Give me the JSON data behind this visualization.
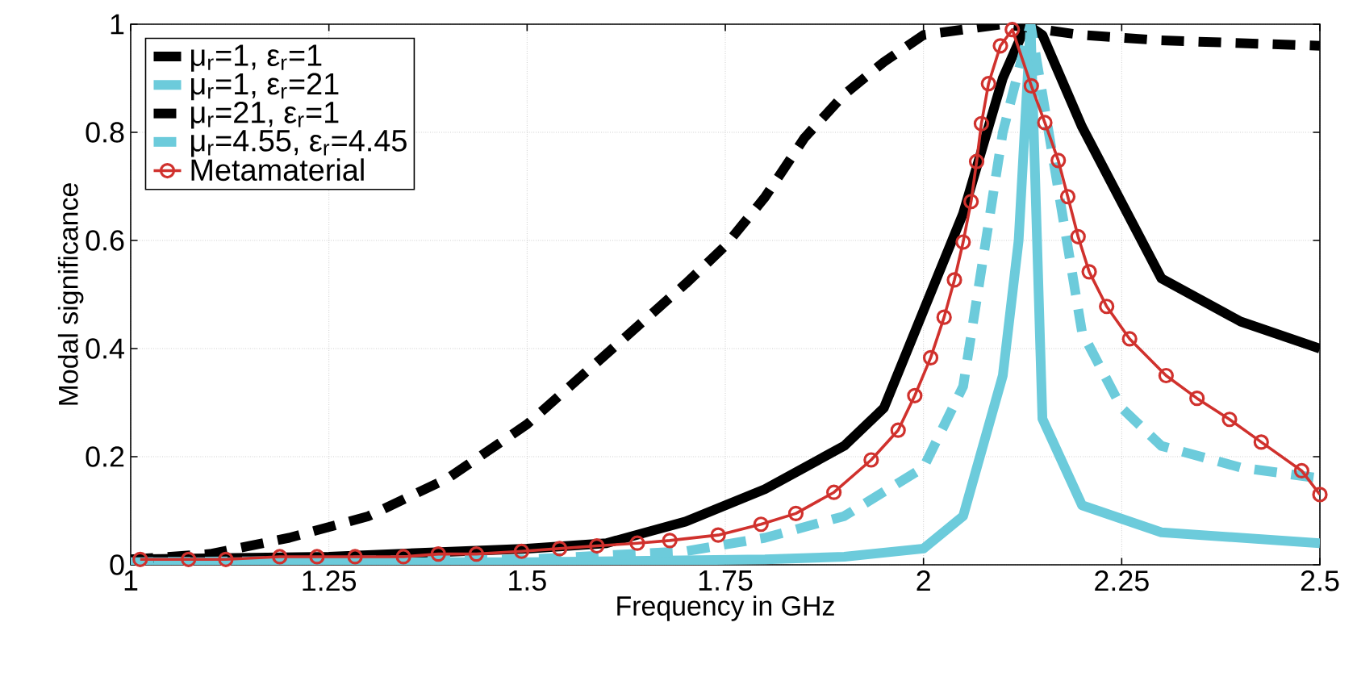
{
  "chart_data": {
    "type": "line",
    "xlabel": "Frequency in GHz",
    "ylabel": "Modal significance",
    "xlim": [
      1,
      2.5
    ],
    "ylim": [
      0,
      1
    ],
    "xticks": [
      1,
      1.25,
      1.5,
      1.75,
      2,
      2.25,
      2.5
    ],
    "yticks": [
      0,
      0.2,
      0.4,
      0.6,
      0.8,
      1
    ],
    "grid": true,
    "legend": "top left",
    "series": [
      {
        "name": "μ$_{r}$=1, ε$_{r}$=1",
        "color": "#000000",
        "line_style": "solid",
        "marker": "none",
        "x": [
          1,
          1.25,
          1.5,
          1.6,
          1.7,
          1.75,
          1.8,
          1.9,
          1.95,
          2.0,
          2.05,
          2.1,
          2.13,
          2.15,
          2.2,
          2.3,
          2.4,
          2.5
        ],
        "values": [
          0.01,
          0.015,
          0.03,
          0.04,
          0.08,
          0.11,
          0.14,
          0.22,
          0.29,
          0.47,
          0.65,
          0.9,
          1.0,
          0.98,
          0.81,
          0.53,
          0.45,
          0.4
        ]
      },
      {
        "name": "μ$_{r}$=1, ε$_{r}$=21",
        "color": "#6ccbdb",
        "line_style": "solid",
        "marker": "none",
        "x": [
          1,
          1.5,
          1.8,
          1.9,
          2.0,
          2.05,
          2.1,
          2.12,
          2.135,
          2.15,
          2.2,
          2.3,
          2.5
        ],
        "values": [
          0.005,
          0.005,
          0.01,
          0.015,
          0.03,
          0.09,
          0.35,
          0.6,
          1.0,
          0.27,
          0.11,
          0.06,
          0.04
        ]
      },
      {
        "name": "μ$_{r}$=21, ε$_{r}$=1",
        "color": "#000000",
        "line_style": "dashed",
        "marker": "none",
        "x": [
          1,
          1.1,
          1.2,
          1.3,
          1.4,
          1.5,
          1.6,
          1.7,
          1.75,
          1.8,
          1.85,
          1.9,
          1.95,
          2.0,
          2.1,
          2.2,
          2.3,
          2.5
        ],
        "values": [
          0.01,
          0.02,
          0.05,
          0.09,
          0.16,
          0.26,
          0.39,
          0.52,
          0.59,
          0.68,
          0.79,
          0.87,
          0.93,
          0.98,
          1.0,
          0.98,
          0.97,
          0.96
        ]
      },
      {
        "name": "μ$_{r}$=4.55, ε$_{r}$=4.45",
        "color": "#6ccbdb",
        "line_style": "dashed",
        "marker": "none",
        "x": [
          1,
          1.5,
          1.7,
          1.8,
          1.9,
          2.0,
          2.05,
          2.1,
          2.135,
          2.15,
          2.2,
          2.25,
          2.3,
          2.4,
          2.5
        ],
        "values": [
          0.005,
          0.01,
          0.025,
          0.05,
          0.09,
          0.18,
          0.33,
          0.8,
          1.0,
          0.87,
          0.43,
          0.29,
          0.22,
          0.18,
          0.16
        ]
      },
      {
        "name": "Metamaterial",
        "color": "#d0312d",
        "line_style": "solid",
        "marker": "circle",
        "x": [
          1.012,
          1.073,
          1.12,
          1.188,
          1.235,
          1.283,
          1.344,
          1.388,
          1.436,
          1.493,
          1.541,
          1.588,
          1.639,
          1.68,
          1.741,
          1.795,
          1.839,
          1.887,
          1.934,
          1.968,
          1.989,
          2.009,
          2.026,
          2.039,
          2.05,
          2.06,
          2.067,
          2.073,
          2.082,
          2.097,
          2.112,
          2.136,
          2.153,
          2.17,
          2.182,
          2.195,
          2.209,
          2.231,
          2.26,
          2.306,
          2.345,
          2.386,
          2.426,
          2.477,
          2.5
        ],
        "values": [
          0.01,
          0.01,
          0.01,
          0.015,
          0.015,
          0.015,
          0.015,
          0.02,
          0.02,
          0.025,
          0.03,
          0.035,
          0.04,
          0.045,
          0.055,
          0.075,
          0.095,
          0.134,
          0.194,
          0.249,
          0.313,
          0.383,
          0.458,
          0.527,
          0.597,
          0.672,
          0.746,
          0.816,
          0.89,
          0.96,
          0.99,
          0.886,
          0.818,
          0.748,
          0.681,
          0.607,
          0.542,
          0.478,
          0.418,
          0.35,
          0.308,
          0.269,
          0.227,
          0.174,
          0.13
        ]
      }
    ]
  }
}
